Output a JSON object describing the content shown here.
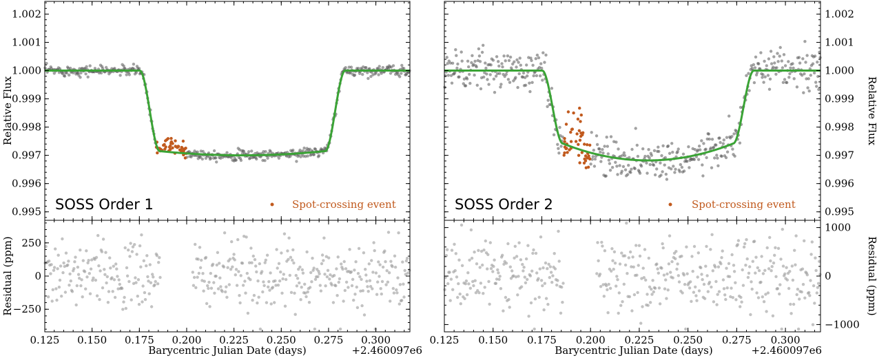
{
  "chart_data": [
    {
      "type": "scatter",
      "panel": "order1-flux",
      "label": "SOSS Order 1",
      "legend_label": "Spot-crossing event",
      "ylabel": "Relative Flux",
      "xlim": [
        0.125,
        0.318
      ],
      "ylim": [
        0.9947,
        1.00245
      ],
      "yticks": [
        "0.995",
        "0.996",
        "0.997",
        "0.998",
        "0.999",
        "1.000",
        "1.001",
        "1.002"
      ],
      "model": {
        "t0": 0.2295,
        "t14": 0.1085,
        "t23": 0.0875,
        "depth": 0.003,
        "limb_curvature": 0.00015,
        "color": "#3aa335"
      },
      "noise_ppm": 90,
      "spot": {
        "range": [
          0.184,
          0.2
        ],
        "excess_ppm": 280,
        "scatter_ppm": 120,
        "color": "#c15a1e"
      }
    },
    {
      "type": "scatter",
      "panel": "order1-residual",
      "ylabel": "Residual (ppm)",
      "ylim": [
        -420,
        420
      ],
      "yticks": [
        "-250",
        "0",
        "250"
      ],
      "noise_ppm": 130,
      "gap": [
        0.186,
        0.203
      ]
    },
    {
      "type": "scatter",
      "panel": "order2-flux",
      "label": "SOSS Order 2",
      "legend_label": "Spot-crossing event",
      "ylabel": "Relative Flux",
      "xlim": [
        0.125,
        0.318
      ],
      "ylim": [
        0.9947,
        1.00245
      ],
      "yticks": [
        "0.995",
        "0.996",
        "0.997",
        "0.998",
        "0.999",
        "1.000",
        "1.001",
        "1.002"
      ],
      "model": {
        "t0": 0.2295,
        "t14": 0.1085,
        "t23": 0.0875,
        "depth": 0.00318,
        "limb_curvature": 0.0006,
        "color": "#3aa335"
      },
      "noise_ppm": 350,
      "spot": {
        "range": [
          0.186,
          0.2
        ],
        "excess_ppm": 400,
        "scatter_ppm": 450,
        "color": "#c15a1e"
      }
    },
    {
      "type": "scatter",
      "panel": "order2-residual",
      "ylabel": "Residual (ppm)",
      "ylim": [
        -1150,
        1150
      ],
      "yticks": [
        "-1000",
        "0",
        "1000"
      ],
      "noise_ppm": 420,
      "gap": [
        0.186,
        0.203
      ]
    }
  ],
  "x_axis": {
    "label": "Barycentric Julian Date (days)",
    "offset": "+2.460097e6",
    "ticks": [
      "0.125",
      "0.150",
      "0.175",
      "0.200",
      "0.225",
      "0.250",
      "0.275",
      "0.300"
    ]
  },
  "colors": {
    "data": "#555555",
    "residual": "#9a9a9a",
    "model": "#3aa335",
    "spot": "#c15a1e"
  }
}
